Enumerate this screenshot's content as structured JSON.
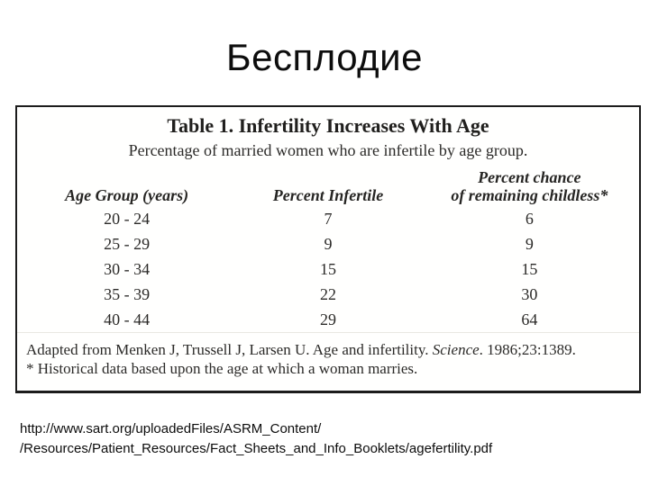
{
  "slide": {
    "title": "Бесплодие",
    "source_url_line1": "http://www.sart.org/uploadedFiles/ASRM_Content/",
    "source_url_line2": "/Resources/Patient_Resources/Fact_Sheets_and_Info_Booklets/agefertility.pdf"
  },
  "figure": {
    "title": "Table 1. Infertility Increases With Age",
    "subtitle": "Percentage of married women who are infertile by age group.",
    "headers": {
      "col1": "Age Group (years)",
      "col2": "Percent Infertile",
      "col3_line1": "Percent chance",
      "col3_line2": "of remaining childless*"
    },
    "rows": [
      [
        "20 - 24",
        "7",
        "6"
      ],
      [
        "25 - 29",
        "9",
        "9"
      ],
      [
        "30 - 34",
        "15",
        "15"
      ],
      [
        "35 - 39",
        "22",
        "30"
      ],
      [
        "40 - 44",
        "29",
        "64"
      ]
    ],
    "source_note": {
      "prefix": "Adapted from Menken J, Trussell J, Larsen U. Age and infertility. ",
      "italic": "Science",
      "suffix": ". 1986;23:1389."
    },
    "footnote": "* Historical data based upon the age at which a woman marries."
  },
  "chart_data": {
    "type": "table",
    "title": "Table 1. Infertility Increases With Age",
    "subtitle": "Percentage of married women who are infertile by age group.",
    "columns": [
      "Age Group (years)",
      "Percent Infertile",
      "Percent chance of remaining childless*"
    ],
    "rows": [
      [
        "20 - 24",
        7,
        6
      ],
      [
        "25 - 29",
        9,
        9
      ],
      [
        "30 - 34",
        15,
        15
      ],
      [
        "35 - 39",
        22,
        30
      ],
      [
        "40 - 44",
        29,
        64
      ]
    ],
    "source": "Adapted from Menken J, Trussell J, Larsen U. Age and infertility. Science. 1986;23:1389.",
    "footnote": "* Historical data based upon the age at which a woman marries."
  }
}
